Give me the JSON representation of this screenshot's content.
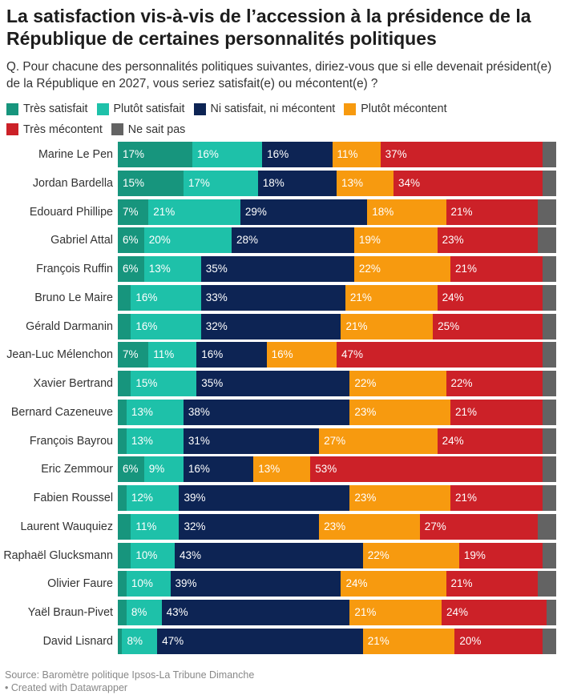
{
  "title": "La satisfaction vis-à-vis de l’accession à la présidence de la République de certaines personnalités politiques",
  "subtitle": "Q. Pour chacune des personnalités politiques suivantes, diriez-vous que si elle devenait président(e) de la République en 2027, vous seriez satisfait(e) ou mécontent(e) ?",
  "source": {
    "line1": "Source: Baromètre politique Ipsos-La Tribune Dimanche",
    "line2": " • Created with Datawrapper"
  },
  "chart_data": {
    "type": "bar",
    "orientation": "horizontal",
    "stacked": true,
    "xlim": [
      0,
      100
    ],
    "legend_placement": "top",
    "categories": [
      "Marine Le Pen",
      "Jordan Bardella",
      "Edouard Phillipe",
      "Gabriel Attal",
      "François Ruffin",
      "Bruno Le Maire",
      "Gérald Darmanin",
      "Jean-Luc Mélenchon",
      "Xavier Bertrand",
      "Bernard Cazeneuve",
      "François Bayrou",
      "Eric Zemmour",
      "Fabien Roussel",
      "Laurent Wauquiez",
      "Raphaël Glucksmann",
      "Olivier Faure",
      "Yaël Braun-Pivet",
      "David Lisnard"
    ],
    "series": [
      {
        "name": "Très satisfait",
        "color": "#17957d",
        "values": [
          17,
          15,
          7,
          6,
          6,
          3,
          3,
          7,
          3,
          2,
          2,
          6,
          2,
          3,
          3,
          2,
          2,
          1
        ],
        "labels": [
          "17%",
          "15%",
          "7%",
          "6%",
          "6%",
          "",
          "",
          "7%",
          "",
          "",
          "",
          "6%",
          "",
          "",
          "",
          "",
          "",
          ""
        ]
      },
      {
        "name": "Plutôt satisfait",
        "color": "#1ec1a9",
        "values": [
          16,
          17,
          21,
          20,
          13,
          16,
          16,
          11,
          15,
          13,
          13,
          9,
          12,
          11,
          10,
          10,
          8,
          8
        ],
        "labels": [
          "16%",
          "17%",
          "21%",
          "20%",
          "13%",
          "16%",
          "16%",
          "11%",
          "15%",
          "13%",
          "13%",
          "9%",
          "12%",
          "11%",
          "10%",
          "10%",
          "8%",
          "8%"
        ]
      },
      {
        "name": "Ni satisfait, ni mécontent",
        "color": "#0d2454",
        "values": [
          16,
          18,
          29,
          28,
          35,
          33,
          32,
          16,
          35,
          38,
          31,
          16,
          39,
          32,
          43,
          39,
          43,
          47
        ],
        "labels": [
          "16%",
          "18%",
          "29%",
          "28%",
          "35%",
          "33%",
          "32%",
          "16%",
          "35%",
          "38%",
          "31%",
          "16%",
          "39%",
          "32%",
          "43%",
          "39%",
          "43%",
          "47%"
        ]
      },
      {
        "name": "Plutôt mécontent",
        "color": "#f79a0f",
        "values": [
          11,
          13,
          18,
          19,
          22,
          21,
          21,
          16,
          22,
          23,
          27,
          13,
          23,
          23,
          22,
          24,
          21,
          21
        ],
        "labels": [
          "11%",
          "13%",
          "18%",
          "19%",
          "22%",
          "21%",
          "21%",
          "16%",
          "22%",
          "23%",
          "27%",
          "13%",
          "23%",
          "23%",
          "22%",
          "24%",
          "21%",
          "21%"
        ]
      },
      {
        "name": "Très mécontent",
        "color": "#cc2128",
        "values": [
          37,
          34,
          21,
          23,
          21,
          24,
          25,
          47,
          22,
          21,
          24,
          53,
          21,
          27,
          19,
          21,
          24,
          20
        ],
        "labels": [
          "37%",
          "34%",
          "21%",
          "23%",
          "21%",
          "24%",
          "25%",
          "47%",
          "22%",
          "21%",
          "24%",
          "53%",
          "21%",
          "27%",
          "19%",
          "21%",
          "24%",
          "20%"
        ]
      },
      {
        "name": "Ne sait pas",
        "color": "#636363",
        "values": [
          3,
          3,
          4,
          4,
          3,
          3,
          3,
          3,
          3,
          3,
          3,
          3,
          3,
          4,
          3,
          4,
          2,
          3
        ],
        "labels": [
          "",
          "",
          "",
          "",
          "",
          "",
          "",
          "",
          "",
          "",
          "",
          "",
          "",
          "",
          "",
          "",
          "",
          ""
        ]
      }
    ]
  }
}
